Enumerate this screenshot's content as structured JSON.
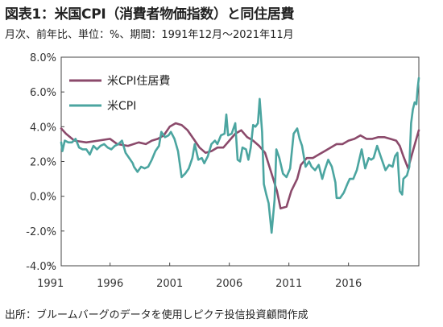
{
  "header": {
    "title": "図表1：米国CPI（消費者物価指数）と同住居費",
    "subtitle": "月次、前年比、単位：%、期間：1991年12月～2021年11月"
  },
  "footer": {
    "source": "出所：ブルームバーグのデータを使用しピクテ投信投資顧問作成"
  },
  "chart_data": {
    "type": "line",
    "ylim": [
      -4.0,
      8.0
    ],
    "yticks": [
      "8.0%",
      "6.0%",
      "4.0%",
      "2.0%",
      "0.0%",
      "-2.0%",
      "-4.0%"
    ],
    "xlim": [
      1991.9,
      2021.9
    ],
    "xticks": [
      "1991",
      "1996",
      "2001",
      "2006",
      "2011",
      "2016"
    ],
    "grid": false,
    "legend_position": "top-left",
    "series": [
      {
        "name": "米CPI住居費",
        "color": "#8B4A6B",
        "points": [
          [
            1991.9,
            3.9
          ],
          [
            1992.3,
            3.6
          ],
          [
            1993.0,
            3.2
          ],
          [
            1994.0,
            3.1
          ],
          [
            1995.0,
            3.2
          ],
          [
            1996.0,
            3.3
          ],
          [
            1996.6,
            3.0
          ],
          [
            1997.5,
            2.9
          ],
          [
            1998.4,
            3.1
          ],
          [
            1999.0,
            3.0
          ],
          [
            1999.5,
            3.2
          ],
          [
            2000.0,
            3.3
          ],
          [
            2000.5,
            3.5
          ],
          [
            2001.0,
            4.0
          ],
          [
            2001.5,
            4.2
          ],
          [
            2002.0,
            4.1
          ],
          [
            2002.5,
            3.8
          ],
          [
            2003.0,
            3.3
          ],
          [
            2003.5,
            2.8
          ],
          [
            2004.0,
            2.5
          ],
          [
            2004.5,
            2.6
          ],
          [
            2005.0,
            2.8
          ],
          [
            2005.5,
            2.8
          ],
          [
            2006.0,
            3.2
          ],
          [
            2006.5,
            3.6
          ],
          [
            2007.0,
            3.8
          ],
          [
            2007.5,
            3.4
          ],
          [
            2008.0,
            3.2
          ],
          [
            2008.5,
            2.9
          ],
          [
            2009.0,
            2.5
          ],
          [
            2009.5,
            1.4
          ],
          [
            2010.0,
            0.3
          ],
          [
            2010.3,
            -0.7
          ],
          [
            2010.8,
            -0.6
          ],
          [
            2011.2,
            0.3
          ],
          [
            2011.7,
            1.0
          ],
          [
            2012.0,
            1.8
          ],
          [
            2012.5,
            2.2
          ],
          [
            2013.0,
            2.2
          ],
          [
            2013.5,
            2.4
          ],
          [
            2014.0,
            2.6
          ],
          [
            2014.5,
            2.8
          ],
          [
            2015.0,
            3.0
          ],
          [
            2015.5,
            3.0
          ],
          [
            2016.0,
            3.2
          ],
          [
            2016.5,
            3.3
          ],
          [
            2017.0,
            3.5
          ],
          [
            2017.5,
            3.3
          ],
          [
            2018.0,
            3.3
          ],
          [
            2018.5,
            3.4
          ],
          [
            2019.0,
            3.4
          ],
          [
            2019.5,
            3.3
          ],
          [
            2020.0,
            3.2
          ],
          [
            2020.3,
            2.9
          ],
          [
            2020.6,
            2.3
          ],
          [
            2021.0,
            1.6
          ],
          [
            2021.4,
            2.6
          ],
          [
            2021.9,
            3.8
          ]
        ]
      },
      {
        "name": "米CPI",
        "color": "#4BA5A0",
        "points": [
          [
            1991.9,
            3.1
          ],
          [
            1992.0,
            2.6
          ],
          [
            1992.2,
            3.2
          ],
          [
            1992.5,
            3.1
          ],
          [
            1992.8,
            3.1
          ],
          [
            1993.1,
            3.3
          ],
          [
            1993.4,
            2.8
          ],
          [
            1993.7,
            2.7
          ],
          [
            1994.0,
            2.7
          ],
          [
            1994.3,
            2.4
          ],
          [
            1994.6,
            2.9
          ],
          [
            1994.9,
            2.7
          ],
          [
            1995.2,
            2.9
          ],
          [
            1995.5,
            3.0
          ],
          [
            1995.8,
            2.8
          ],
          [
            1996.1,
            2.7
          ],
          [
            1996.4,
            2.9
          ],
          [
            1996.7,
            3.0
          ],
          [
            1997.0,
            3.2
          ],
          [
            1997.3,
            2.5
          ],
          [
            1997.6,
            2.2
          ],
          [
            1997.9,
            1.9
          ],
          [
            1998.0,
            1.7
          ],
          [
            1998.3,
            1.4
          ],
          [
            1998.6,
            1.7
          ],
          [
            1998.9,
            1.6
          ],
          [
            1999.2,
            1.7
          ],
          [
            1999.5,
            2.1
          ],
          [
            1999.8,
            2.6
          ],
          [
            2000.1,
            2.9
          ],
          [
            2000.3,
            3.7
          ],
          [
            2000.6,
            3.4
          ],
          [
            2000.9,
            3.5
          ],
          [
            2001.1,
            3.7
          ],
          [
            2001.4,
            3.3
          ],
          [
            2001.7,
            2.6
          ],
          [
            2001.9,
            1.6
          ],
          [
            2002.0,
            1.1
          ],
          [
            2002.3,
            1.3
          ],
          [
            2002.6,
            1.6
          ],
          [
            2002.9,
            2.2
          ],
          [
            2003.1,
            3.0
          ],
          [
            2003.4,
            2.1
          ],
          [
            2003.7,
            2.2
          ],
          [
            2003.9,
            1.9
          ],
          [
            2004.2,
            2.3
          ],
          [
            2004.5,
            3.0
          ],
          [
            2004.8,
            3.2
          ],
          [
            2005.0,
            3.0
          ],
          [
            2005.3,
            3.5
          ],
          [
            2005.6,
            3.6
          ],
          [
            2005.75,
            4.7
          ],
          [
            2005.9,
            3.5
          ],
          [
            2006.2,
            3.6
          ],
          [
            2006.5,
            4.2
          ],
          [
            2006.7,
            2.1
          ],
          [
            2006.9,
            2.0
          ],
          [
            2007.1,
            2.8
          ],
          [
            2007.4,
            2.7
          ],
          [
            2007.6,
            2.1
          ],
          [
            2007.8,
            2.8
          ],
          [
            2008.0,
            4.1
          ],
          [
            2008.2,
            4.0
          ],
          [
            2008.4,
            4.2
          ],
          [
            2008.55,
            5.6
          ],
          [
            2008.75,
            3.7
          ],
          [
            2008.9,
            0.7
          ],
          [
            2009.1,
            0.1
          ],
          [
            2009.3,
            -0.4
          ],
          [
            2009.45,
            -1.4
          ],
          [
            2009.55,
            -2.1
          ],
          [
            2009.8,
            -0.2
          ],
          [
            2009.95,
            2.7
          ],
          [
            2010.2,
            2.2
          ],
          [
            2010.5,
            1.3
          ],
          [
            2010.8,
            1.1
          ],
          [
            2011.1,
            1.6
          ],
          [
            2011.4,
            3.6
          ],
          [
            2011.7,
            3.9
          ],
          [
            2011.9,
            3.3
          ],
          [
            2012.1,
            2.9
          ],
          [
            2012.4,
            1.7
          ],
          [
            2012.7,
            2.0
          ],
          [
            2012.9,
            1.7
          ],
          [
            2013.2,
            1.5
          ],
          [
            2013.5,
            1.8
          ],
          [
            2013.8,
            1.0
          ],
          [
            2014.0,
            1.5
          ],
          [
            2014.3,
            2.1
          ],
          [
            2014.6,
            1.7
          ],
          [
            2014.9,
            0.8
          ],
          [
            2015.0,
            -0.1
          ],
          [
            2015.3,
            -0.1
          ],
          [
            2015.6,
            0.2
          ],
          [
            2015.9,
            0.7
          ],
          [
            2016.1,
            1.0
          ],
          [
            2016.4,
            1.0
          ],
          [
            2016.7,
            1.5
          ],
          [
            2016.9,
            2.1
          ],
          [
            2017.1,
            2.7
          ],
          [
            2017.4,
            1.6
          ],
          [
            2017.7,
            2.2
          ],
          [
            2017.9,
            2.1
          ],
          [
            2018.1,
            2.2
          ],
          [
            2018.4,
            2.9
          ],
          [
            2018.7,
            2.3
          ],
          [
            2018.9,
            1.9
          ],
          [
            2019.1,
            1.5
          ],
          [
            2019.4,
            1.8
          ],
          [
            2019.7,
            1.7
          ],
          [
            2019.9,
            2.3
          ],
          [
            2020.1,
            2.5
          ],
          [
            2020.3,
            0.3
          ],
          [
            2020.5,
            0.1
          ],
          [
            2020.6,
            1.0
          ],
          [
            2020.9,
            1.2
          ],
          [
            2021.1,
            1.7
          ],
          [
            2021.25,
            4.2
          ],
          [
            2021.4,
            5.0
          ],
          [
            2021.55,
            5.4
          ],
          [
            2021.7,
            5.3
          ],
          [
            2021.8,
            6.2
          ],
          [
            2021.9,
            6.8
          ]
        ]
      }
    ]
  }
}
